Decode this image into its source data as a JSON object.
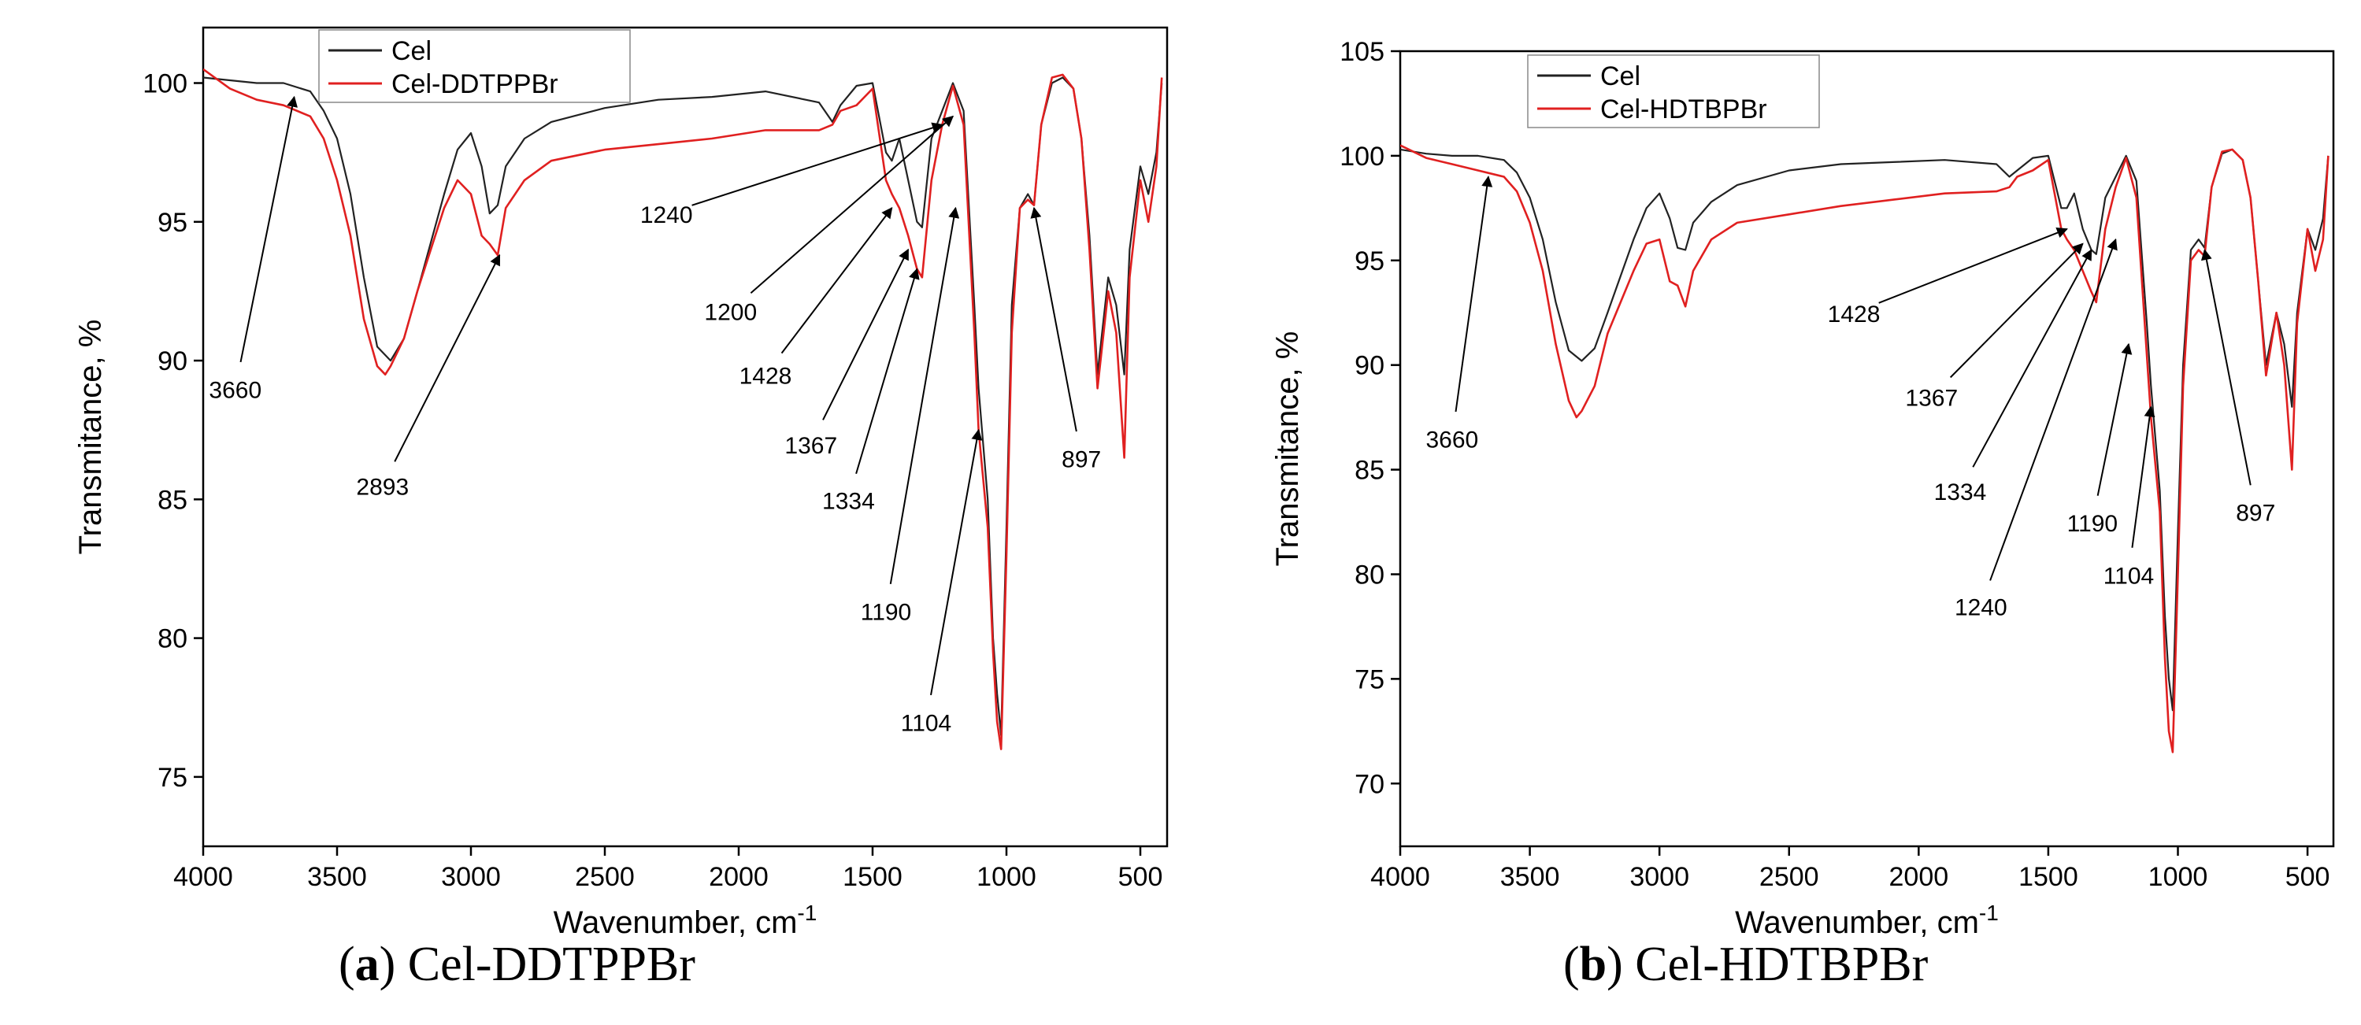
{
  "chart_data": [
    {
      "type": "line",
      "xlabel": "Wavenumber, cm",
      "xlabel_sup": "-1",
      "ylabel": "Transmitance, %",
      "xlim": [
        4000,
        400
      ],
      "ylim": [
        72.5,
        102
      ],
      "x_ticks": [
        4000,
        3500,
        3000,
        2500,
        2000,
        1500,
        1000,
        500
      ],
      "y_ticks": [
        75,
        80,
        85,
        90,
        95,
        100
      ],
      "grid": false,
      "legend_position": "top-left",
      "legend": [
        "Cel",
        "Cel-DDTPPBr"
      ],
      "colors": {
        "cel": "#222222",
        "modified": "#e02020"
      },
      "series": [
        {
          "name": "Cel",
          "x": [
            4000,
            3900,
            3800,
            3700,
            3600,
            3550,
            3500,
            3450,
            3400,
            3350,
            3300,
            3250,
            3200,
            3100,
            3050,
            3000,
            2960,
            2930,
            2900,
            2870,
            2800,
            2700,
            2500,
            2300,
            2100,
            1900,
            1700,
            1650,
            1620,
            1560,
            1500,
            1450,
            1428,
            1400,
            1367,
            1334,
            1315,
            1280,
            1240,
            1200,
            1160,
            1120,
            1104,
            1070,
            1050,
            1035,
            1020,
            1000,
            980,
            950,
            920,
            897,
            870,
            830,
            790,
            750,
            720,
            690,
            660,
            620,
            590,
            560,
            540,
            500,
            470,
            440,
            420
          ],
          "y": [
            100.2,
            100.1,
            100.0,
            100.0,
            99.7,
            99.0,
            98.0,
            96.0,
            93.0,
            90.5,
            90.0,
            90.8,
            92.5,
            96.0,
            97.6,
            98.2,
            97.0,
            95.3,
            95.6,
            97.0,
            98.0,
            98.6,
            99.1,
            99.4,
            99.5,
            99.7,
            99.3,
            98.6,
            99.2,
            99.9,
            100.0,
            97.5,
            97.2,
            98.0,
            96.5,
            95.0,
            94.8,
            98.0,
            99.0,
            100.0,
            99.0,
            92.0,
            89.0,
            85.0,
            80.0,
            78.0,
            76.5,
            84.0,
            92.0,
            95.5,
            96.0,
            95.6,
            98.5,
            100.0,
            100.2,
            99.8,
            98.0,
            94.5,
            89.5,
            93.0,
            92.0,
            89.5,
            94.0,
            97.0,
            96.0,
            97.5,
            100.0
          ]
        },
        {
          "name": "Cel-DDTPPBr",
          "x": [
            4000,
            3900,
            3800,
            3700,
            3600,
            3550,
            3500,
            3450,
            3400,
            3350,
            3320,
            3300,
            3250,
            3200,
            3100,
            3050,
            3000,
            2960,
            2930,
            2900,
            2870,
            2800,
            2700,
            2500,
            2300,
            2100,
            1900,
            1700,
            1650,
            1620,
            1560,
            1500,
            1450,
            1428,
            1400,
            1367,
            1334,
            1315,
            1280,
            1240,
            1200,
            1160,
            1120,
            1104,
            1070,
            1050,
            1035,
            1020,
            1000,
            980,
            950,
            920,
            897,
            870,
            830,
            790,
            750,
            720,
            690,
            660,
            620,
            590,
            560,
            540,
            500,
            470,
            440,
            420
          ],
          "y": [
            100.5,
            99.8,
            99.4,
            99.2,
            98.8,
            98.0,
            96.5,
            94.5,
            91.5,
            89.8,
            89.5,
            89.8,
            90.8,
            92.5,
            95.5,
            96.5,
            96.0,
            94.5,
            94.2,
            93.8,
            95.5,
            96.5,
            97.2,
            97.6,
            97.8,
            98.0,
            98.3,
            98.3,
            98.5,
            99.0,
            99.2,
            99.8,
            96.5,
            96.0,
            95.5,
            94.5,
            93.3,
            93.0,
            96.5,
            98.5,
            99.9,
            98.5,
            91.0,
            87.5,
            84.0,
            79.5,
            77.0,
            76.0,
            83.0,
            91.0,
            95.5,
            95.8,
            95.6,
            98.5,
            100.2,
            100.3,
            99.8,
            98.0,
            94.0,
            89.0,
            92.5,
            91.0,
            86.5,
            93.0,
            96.5,
            95.0,
            97.0,
            100.2
          ]
        }
      ],
      "annotations": [
        {
          "text": "3660",
          "x": 3660,
          "y": 99.5,
          "label_x": 3880,
          "label_y": 89.0
        },
        {
          "text": "2893",
          "x": 2893,
          "y": 93.8,
          "label_x": 3330,
          "label_y": 85.5
        },
        {
          "text": "1240",
          "x": 1240,
          "y": 98.5,
          "label_x": 2270,
          "label_y": 95.3
        },
        {
          "text": "1200",
          "x": 1200,
          "y": 98.8,
          "label_x": 2030,
          "label_y": 91.8
        },
        {
          "text": "1428",
          "x": 1428,
          "y": 95.5,
          "label_x": 1900,
          "label_y": 89.5
        },
        {
          "text": "1367",
          "x": 1367,
          "y": 94.0,
          "label_x": 1730,
          "label_y": 87.0
        },
        {
          "text": "1334",
          "x": 1334,
          "y": 93.3,
          "label_x": 1590,
          "label_y": 85.0
        },
        {
          "text": "1190",
          "x": 1190,
          "y": 95.5,
          "label_x": 1450,
          "label_y": 81.0
        },
        {
          "text": "1104",
          "x": 1104,
          "y": 87.5,
          "label_x": 1300,
          "label_y": 77.0
        },
        {
          "text": "897",
          "x": 897,
          "y": 95.5,
          "label_x": 720,
          "label_y": 86.5
        }
      ]
    },
    {
      "type": "line",
      "xlabel": "Wavenumber, cm",
      "xlabel_sup": "-1",
      "ylabel": "Transmitance, %",
      "xlim": [
        4000,
        400
      ],
      "ylim": [
        67,
        105
      ],
      "x_ticks": [
        4000,
        3500,
        3000,
        2500,
        2000,
        1500,
        1000,
        500
      ],
      "y_ticks": [
        70,
        75,
        80,
        85,
        90,
        95,
        100,
        105
      ],
      "grid": false,
      "legend_position": "top-left",
      "legend": [
        "Cel",
        "Cel-HDTBPBr"
      ],
      "colors": {
        "cel": "#222222",
        "modified": "#e02020"
      },
      "series": [
        {
          "name": "Cel",
          "x": [
            4000,
            3900,
            3800,
            3700,
            3600,
            3550,
            3500,
            3450,
            3400,
            3350,
            3300,
            3250,
            3200,
            3100,
            3050,
            3000,
            2960,
            2930,
            2900,
            2870,
            2800,
            2700,
            2500,
            2300,
            2100,
            1900,
            1700,
            1650,
            1620,
            1560,
            1500,
            1450,
            1428,
            1400,
            1367,
            1334,
            1315,
            1280,
            1240,
            1200,
            1160,
            1120,
            1104,
            1070,
            1050,
            1035,
            1020,
            1000,
            980,
            950,
            920,
            897,
            870,
            830,
            790,
            750,
            720,
            690,
            660,
            620,
            590,
            560,
            540,
            500,
            470,
            440,
            420
          ],
          "y": [
            100.3,
            100.1,
            100.0,
            100.0,
            99.8,
            99.2,
            98.0,
            96.0,
            93.0,
            90.7,
            90.2,
            90.8,
            92.5,
            96.0,
            97.5,
            98.2,
            97.0,
            95.6,
            95.5,
            96.8,
            97.8,
            98.6,
            99.3,
            99.6,
            99.7,
            99.8,
            99.6,
            99.0,
            99.3,
            99.9,
            100.0,
            97.5,
            97.5,
            98.2,
            96.5,
            95.5,
            95.3,
            98.0,
            99.0,
            100.0,
            98.8,
            92.0,
            89.0,
            84.0,
            78.0,
            75.0,
            73.5,
            82.0,
            90.0,
            95.5,
            96.0,
            95.6,
            98.5,
            100.1,
            100.3,
            99.8,
            98.0,
            94.0,
            90.0,
            92.5,
            91.0,
            88.0,
            92.5,
            96.5,
            95.5,
            97.0,
            100.0
          ]
        },
        {
          "name": "Cel-HDTBPBr",
          "x": [
            4000,
            3900,
            3800,
            3700,
            3600,
            3550,
            3500,
            3450,
            3400,
            3350,
            3320,
            3300,
            3250,
            3200,
            3100,
            3050,
            3000,
            2960,
            2930,
            2900,
            2870,
            2800,
            2700,
            2500,
            2300,
            2100,
            1900,
            1700,
            1650,
            1620,
            1560,
            1500,
            1450,
            1428,
            1400,
            1367,
            1334,
            1315,
            1280,
            1240,
            1200,
            1160,
            1120,
            1104,
            1070,
            1050,
            1035,
            1020,
            1000,
            980,
            950,
            920,
            897,
            870,
            830,
            790,
            750,
            720,
            690,
            660,
            620,
            590,
            560,
            540,
            500,
            470,
            440,
            420
          ],
          "y": [
            100.5,
            99.9,
            99.6,
            99.3,
            99.0,
            98.3,
            96.8,
            94.5,
            91.0,
            88.3,
            87.5,
            87.8,
            89.0,
            91.5,
            94.5,
            95.8,
            96.0,
            94.0,
            93.8,
            92.8,
            94.5,
            96.0,
            96.8,
            97.2,
            97.6,
            97.9,
            98.2,
            98.3,
            98.5,
            99.0,
            99.3,
            99.8,
            96.5,
            96.0,
            95.5,
            94.5,
            93.5,
            93.0,
            96.5,
            98.5,
            99.9,
            98.0,
            90.5,
            87.5,
            83.0,
            76.0,
            72.5,
            71.5,
            80.0,
            89.0,
            95.0,
            95.5,
            95.2,
            98.5,
            100.2,
            100.3,
            99.8,
            98.0,
            94.0,
            89.5,
            92.5,
            90.0,
            85.0,
            92.0,
            96.5,
            94.5,
            96.0,
            100.0
          ]
        }
      ],
      "annotations": [
        {
          "text": "3660",
          "x": 3660,
          "y": 99.0,
          "label_x": 3800,
          "label_y": 86.5
        },
        {
          "text": "1428",
          "x": 1428,
          "y": 96.5,
          "label_x": 2250,
          "label_y": 92.5
        },
        {
          "text": "1367",
          "x": 1367,
          "y": 95.8,
          "label_x": 1950,
          "label_y": 88.5
        },
        {
          "text": "1334",
          "x": 1334,
          "y": 95.5,
          "label_x": 1840,
          "label_y": 84.0
        },
        {
          "text": "1240",
          "x": 1240,
          "y": 96.0,
          "label_x": 1760,
          "label_y": 78.5
        },
        {
          "text": "1190",
          "x": 1190,
          "y": 91.0,
          "label_x": 1330,
          "label_y": 82.5
        },
        {
          "text": "1104",
          "x": 1104,
          "y": 88.0,
          "label_x": 1190,
          "label_y": 80.0
        },
        {
          "text": "897",
          "x": 897,
          "y": 95.5,
          "label_x": 700,
          "label_y": 83.0
        }
      ]
    }
  ],
  "captions": [
    {
      "letter": "a",
      "text": ") Cel-DDTPPBr"
    },
    {
      "letter": "b",
      "text": ") Cel-HDTBPBr"
    }
  ]
}
